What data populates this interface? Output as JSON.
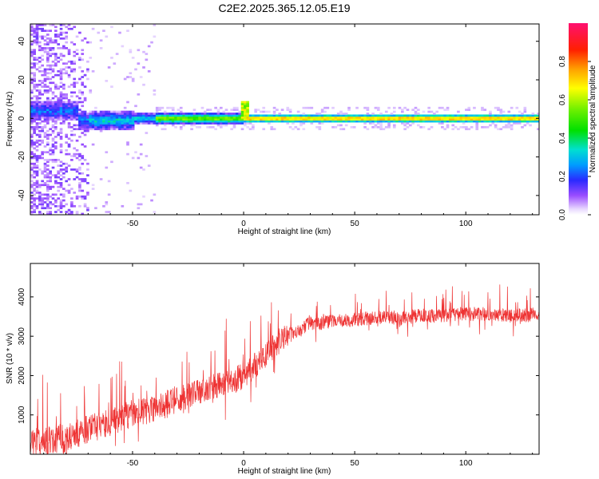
{
  "title": "C2E2.2025.365.12.05.E19",
  "chart_data": [
    {
      "type": "heatmap",
      "name": "spectrogram",
      "xlabel": "Height of straight line (km)",
      "ylabel": "Frequency (Hz)",
      "xlim": [
        -96,
        133
      ],
      "ylim": [
        -50,
        49
      ],
      "xticks": [
        -50,
        0,
        50,
        100
      ],
      "yticks": [
        -40,
        -20,
        0,
        20,
        40
      ],
      "xtick_labels": [
        "-50",
        "0",
        "50",
        "100"
      ],
      "ytick_labels": [
        "-40",
        "-20",
        "0",
        "20",
        "40"
      ],
      "dominant_band_hz": 0,
      "spike": {
        "x_km": 0,
        "freq_hz": 7
      },
      "noise_region_km": [
        -96,
        -70
      ]
    },
    {
      "type": "colorbar",
      "name": "colorbar",
      "label": "Normalized spectral amplitude",
      "range": [
        0.0,
        1.0
      ],
      "ticks": [
        0.0,
        0.2,
        0.4,
        0.6,
        0.8
      ],
      "tick_labels": [
        "0.0",
        "0.2",
        "0.4",
        "0.6",
        "0.8"
      ]
    },
    {
      "type": "line",
      "name": "snr",
      "xlabel": "Height of straight line (km)",
      "ylabel": "SNR (10 * v/v)",
      "xlim": [
        -96,
        133
      ],
      "ylim": [
        0,
        4850
      ],
      "xticks": [
        -50,
        0,
        50,
        100
      ],
      "yticks": [
        1000,
        2000,
        3000,
        4000
      ],
      "xtick_labels": [
        "-50",
        "0",
        "50",
        "100"
      ],
      "ytick_labels": [
        "1000",
        "2000",
        "3000",
        "4000"
      ],
      "color": "#ee3333",
      "trend": {
        "x": [
          -96,
          -80,
          -70,
          -60,
          -50,
          -40,
          -30,
          -20,
          -10,
          0,
          10,
          20,
          30,
          40,
          50,
          60,
          70,
          80,
          90,
          100,
          110,
          120,
          133
        ],
        "y": [
          150,
          250,
          500,
          650,
          900,
          1000,
          1250,
          1450,
          1650,
          1850,
          2400,
          2950,
          3250,
          3300,
          3350,
          3400,
          3400,
          3450,
          3450,
          3500,
          3450,
          3450,
          3500
        ]
      }
    }
  ]
}
